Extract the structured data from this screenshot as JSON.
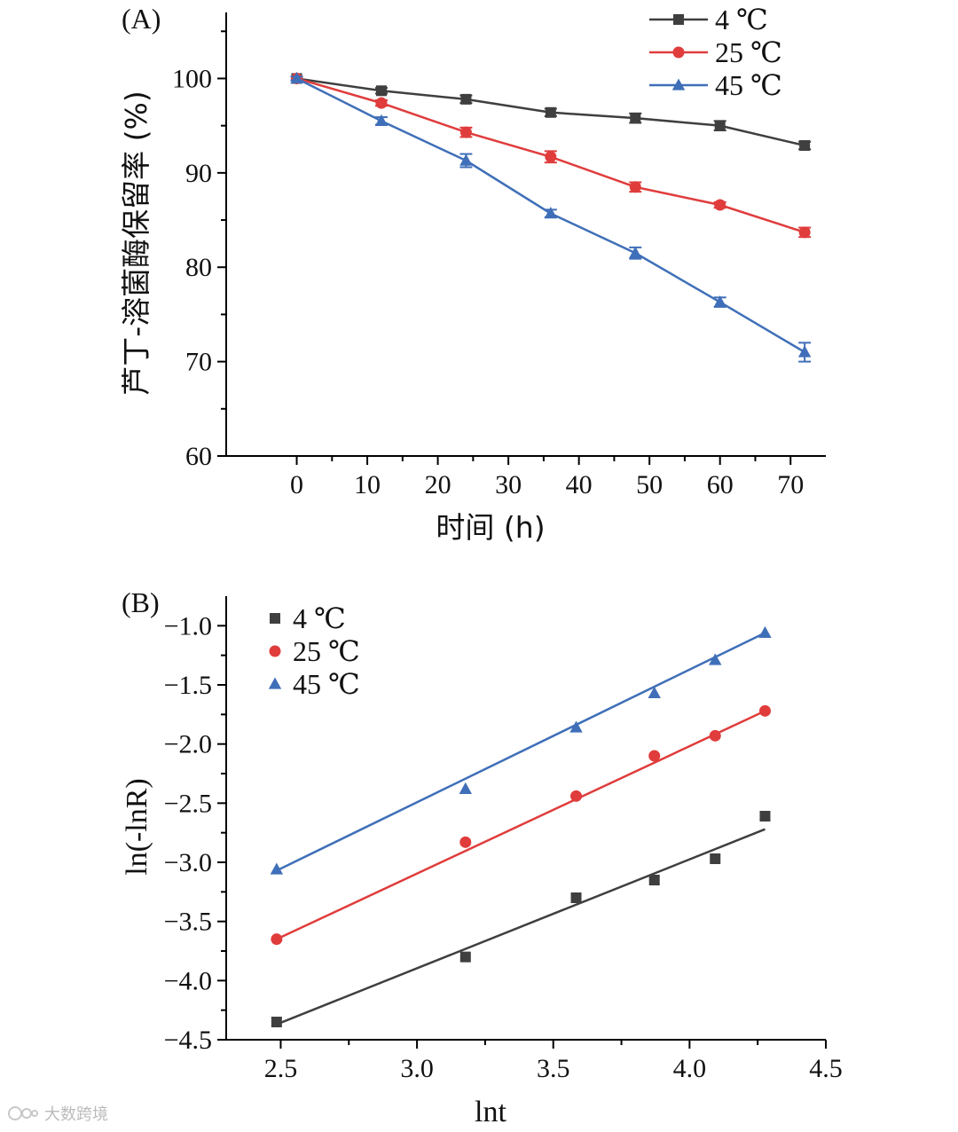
{
  "chart_data": [
    {
      "panel": "(A)",
      "type": "line",
      "xlabel": "时间 (h)",
      "ylabel": "芦丁-溶菌酶保留率 (%)",
      "xlim": [
        -10,
        75
      ],
      "ylim": [
        60,
        107
      ],
      "xticks": [
        0,
        10,
        20,
        30,
        40,
        50,
        60,
        70
      ],
      "yticks": [
        60,
        70,
        80,
        90,
        100
      ],
      "x": [
        0,
        12,
        24,
        36,
        48,
        60,
        72
      ],
      "series": [
        {
          "name": "4 ℃",
          "color": "#3f3f3f",
          "marker": "square",
          "values": [
            100,
            98.7,
            97.8,
            96.4,
            95.8,
            95.0,
            92.9
          ],
          "errors": [
            0.2,
            0.3,
            0.4,
            0.4,
            0.5,
            0.5,
            0.4
          ]
        },
        {
          "name": "25 ℃",
          "color": "#e03c3c",
          "marker": "circle",
          "values": [
            100,
            97.4,
            94.3,
            91.7,
            88.5,
            86.6,
            83.7
          ],
          "errors": [
            0.2,
            0.3,
            0.5,
            0.6,
            0.5,
            0.3,
            0.5
          ]
        },
        {
          "name": "45 ℃",
          "color": "#3f6fb8",
          "marker": "triangle",
          "values": [
            100,
            95.5,
            91.3,
            85.7,
            81.5,
            76.3,
            71.0
          ],
          "errors": [
            0.2,
            0.4,
            0.7,
            0.4,
            0.6,
            0.5,
            1.0
          ]
        }
      ]
    },
    {
      "panel": "(B)",
      "type": "scatter",
      "xlabel": "lnt",
      "ylabel": "ln(-lnR)",
      "xlim": [
        2.3,
        4.5
      ],
      "ylim": [
        -4.5,
        -0.75
      ],
      "xticks": [
        2.5,
        3.0,
        3.5,
        4.0,
        4.5
      ],
      "yticks": [
        -4.5,
        -4.0,
        -3.5,
        -3.0,
        -2.5,
        -2.0,
        -1.5,
        -1.0
      ],
      "xtick_labels": [
        "2.5",
        "3.0",
        "3.5",
        "4.0",
        "4.5"
      ],
      "ytick_labels": [
        "−4.5",
        "−4.0",
        "−3.5",
        "−3.0",
        "−2.5",
        "−2.0",
        "−1.5",
        "−1.0"
      ],
      "x": [
        2.485,
        3.178,
        3.584,
        3.871,
        4.094,
        4.277
      ],
      "series": [
        {
          "name": "4 ℃",
          "color": "#3f3f3f",
          "marker": "square",
          "values": [
            -4.35,
            -3.8,
            -3.3,
            -3.15,
            -2.97,
            -2.61
          ],
          "fit": {
            "x": [
              2.485,
              4.277
            ],
            "y": [
              -4.37,
              -2.72
            ]
          }
        },
        {
          "name": "25 ℃",
          "color": "#e03c3c",
          "marker": "circle",
          "values": [
            -3.65,
            -2.83,
            -2.44,
            -2.1,
            -1.93,
            -1.72
          ],
          "fit": {
            "x": [
              2.485,
              4.277
            ],
            "y": [
              -3.65,
              -1.72
            ]
          }
        },
        {
          "name": "45 ℃",
          "color": "#3f6fb8",
          "marker": "triangle",
          "values": [
            -3.06,
            -2.38,
            -1.86,
            -1.57,
            -1.29,
            -1.06
          ],
          "fit": {
            "x": [
              2.485,
              4.277
            ],
            "y": [
              -3.07,
              -1.06
            ]
          }
        }
      ]
    }
  ],
  "watermark": {
    "text": "大数跨境"
  }
}
